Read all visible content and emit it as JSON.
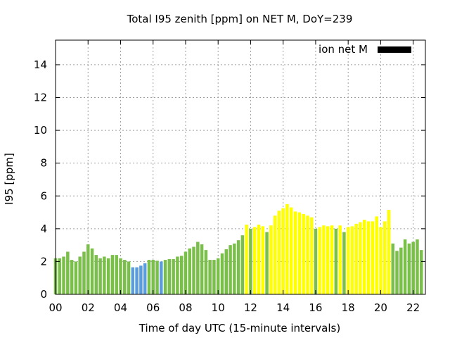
{
  "chart_data": {
    "type": "bar",
    "title": "Total I95 zenith [ppm] on NET M, DoY=239",
    "xlabel": "Time of day UTC (15-minute intervals)",
    "ylabel": "I95 [ppm]",
    "x_ticks": [
      "00",
      "02",
      "04",
      "06",
      "08",
      "10",
      "12",
      "14",
      "16",
      "18",
      "20",
      "22"
    ],
    "y_ticks": [
      "0",
      "2",
      "4",
      "6",
      "8",
      "10",
      "12",
      "14"
    ],
    "xlim": [
      0,
      22.75
    ],
    "ylim": [
      0,
      15.5
    ],
    "grid": true,
    "legend": {
      "label": "ion net M",
      "placement": "top-right",
      "color": "#000000"
    },
    "colors": {
      "green": "#7bbf4b",
      "blue": "#5b9cde",
      "yellow": "#ffff00"
    },
    "bar_step_hours": 0.25,
    "values": [
      2.2,
      2.2,
      2.3,
      2.6,
      2.1,
      2.0,
      2.3,
      2.6,
      3.05,
      2.8,
      2.4,
      2.2,
      2.3,
      2.2,
      2.4,
      2.4,
      2.2,
      2.1,
      2.0,
      1.65,
      1.65,
      1.75,
      1.9,
      2.1,
      2.1,
      2.05,
      2.0,
      2.1,
      2.15,
      2.15,
      2.3,
      2.35,
      2.6,
      2.8,
      2.9,
      3.2,
      3.05,
      2.7,
      2.1,
      2.1,
      2.2,
      2.5,
      2.75,
      3.0,
      3.1,
      3.3,
      3.6,
      4.25,
      4.0,
      4.1,
      4.25,
      4.15,
      3.8,
      4.2,
      4.8,
      5.1,
      5.25,
      5.5,
      5.3,
      5.05,
      5.0,
      4.9,
      4.8,
      4.7,
      4.0,
      4.1,
      4.2,
      4.15,
      4.2,
      4.0,
      4.2,
      3.8,
      4.1,
      4.15,
      4.3,
      4.4,
      4.55,
      4.45,
      4.45,
      4.75,
      4.1,
      4.45,
      5.15,
      3.1,
      2.65,
      2.85,
      3.35,
      3.1,
      3.2,
      3.35,
      2.7
    ],
    "bar_colors": [
      "green",
      "green",
      "green",
      "green",
      "green",
      "green",
      "green",
      "green",
      "green",
      "green",
      "green",
      "green",
      "green",
      "green",
      "green",
      "green",
      "green",
      "green",
      "green",
      "blue",
      "blue",
      "blue",
      "blue",
      "green",
      "green",
      "green",
      "blue",
      "green",
      "green",
      "green",
      "green",
      "green",
      "green",
      "green",
      "green",
      "green",
      "green",
      "green",
      "green",
      "green",
      "green",
      "green",
      "green",
      "green",
      "green",
      "green",
      "green",
      "yellow",
      "green",
      "yellow",
      "yellow",
      "yellow",
      "green",
      "yellow",
      "yellow",
      "yellow",
      "yellow",
      "yellow",
      "yellow",
      "yellow",
      "yellow",
      "yellow",
      "yellow",
      "yellow",
      "green",
      "yellow",
      "yellow",
      "yellow",
      "yellow",
      "green",
      "yellow",
      "green",
      "yellow",
      "yellow",
      "yellow",
      "yellow",
      "yellow",
      "yellow",
      "yellow",
      "yellow",
      "yellow",
      "yellow",
      "yellow",
      "green",
      "green",
      "green",
      "green",
      "green",
      "green",
      "green",
      "green"
    ]
  }
}
